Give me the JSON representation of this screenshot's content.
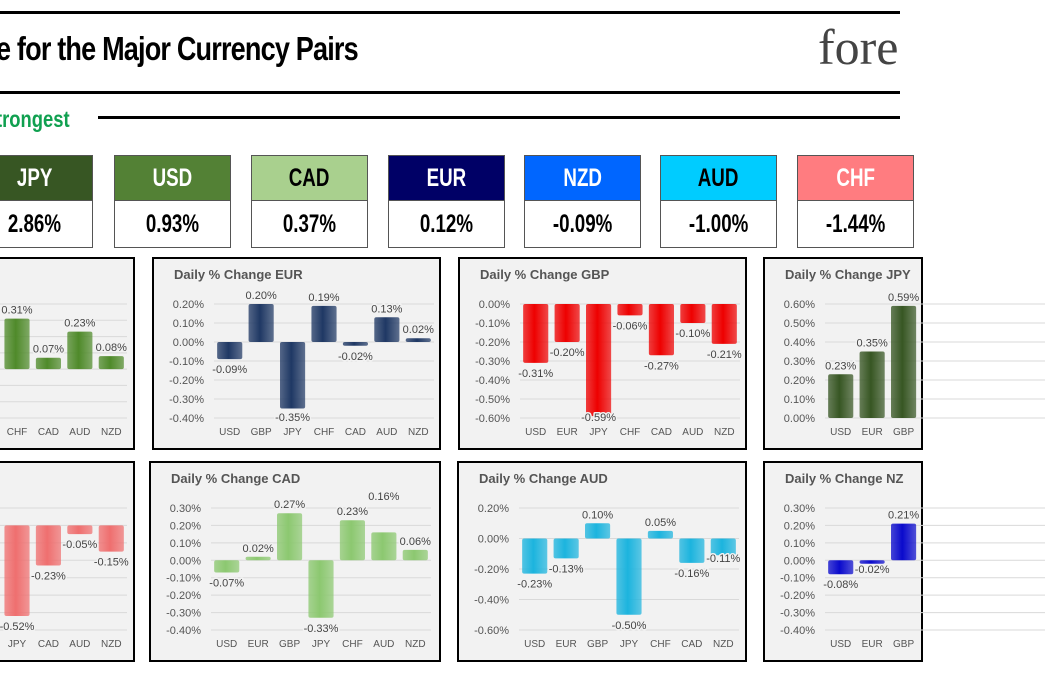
{
  "header": {
    "title": "e for the Major Currency Pairs",
    "logo": "fore"
  },
  "ranking": {
    "label": "trongest",
    "boxes": [
      {
        "code": "JPY",
        "value": "2.86%",
        "bg": "#375623",
        "fg": "#ffffff"
      },
      {
        "code": "USD",
        "value": "0.93%",
        "bg": "#538135",
        "fg": "#ffffff"
      },
      {
        "code": "CAD",
        "value": "0.37%",
        "bg": "#a9d08e",
        "fg": "#000000"
      },
      {
        "code": "EUR",
        "value": "0.12%",
        "bg": "#000066",
        "fg": "#ffffff"
      },
      {
        "code": "NZD",
        "value": "-0.09%",
        "bg": "#0066ff",
        "fg": "#ffffff"
      },
      {
        "code": "AUD",
        "value": "-1.00%",
        "bg": "#00ccff",
        "fg": "#000000"
      },
      {
        "code": "CHF",
        "value": "-1.44%",
        "bg": "#ff7c80",
        "fg": "#ffffff"
      }
    ]
  },
  "chart_data": [
    {
      "type": "bar",
      "title": "",
      "color": "#4f8a2a",
      "categories": [
        "CHF",
        "CAD",
        "AUD",
        "NZD"
      ],
      "values": [
        0.31,
        0.07,
        0.23,
        0.08
      ],
      "labels": [
        "0.31%",
        "0.07%",
        "0.23%",
        "0.08%"
      ],
      "ylim": [
        -0.3,
        0.4
      ],
      "ticks": []
    },
    {
      "type": "bar",
      "title": "Daily % Change EUR",
      "color": "#1f3864",
      "categories": [
        "USD",
        "GBP",
        "JPY",
        "CHF",
        "CAD",
        "AUD",
        "NZD"
      ],
      "values": [
        -0.09,
        0.2,
        -0.35,
        0.19,
        -0.02,
        0.13,
        0.02
      ],
      "labels": [
        "-0.09%",
        "0.20%",
        "-0.35%",
        "0.19%",
        "-0.02%",
        "0.13%",
        "0.02%"
      ],
      "ylim": [
        -0.4,
        0.2
      ],
      "ticks": [
        "0.20%",
        "0.10%",
        "0.00%",
        "-0.10%",
        "-0.20%",
        "-0.30%",
        "-0.40%"
      ]
    },
    {
      "type": "bar",
      "title": "Daily % Change GBP",
      "color": "#ee0000",
      "categories": [
        "USD",
        "EUR",
        "JPY",
        "CHF",
        "CAD",
        "AUD",
        "NZD"
      ],
      "values": [
        -0.31,
        -0.2,
        -0.59,
        -0.06,
        -0.27,
        -0.1,
        -0.21
      ],
      "labels": [
        "-0.31%",
        "-0.20%",
        "-0.59%",
        "-0.06%",
        "-0.27%",
        "-0.10%",
        "-0.21%"
      ],
      "ylim": [
        -0.6,
        0
      ],
      "ticks": [
        "0.00%",
        "-0.10%",
        "-0.20%",
        "-0.30%",
        "-0.40%",
        "-0.50%",
        "-0.60%"
      ]
    },
    {
      "type": "bar",
      "title": "Daily % Change JPY",
      "color": "#375623",
      "categories": [
        "USD",
        "EUR",
        "GBP"
      ],
      "values": [
        0.23,
        0.35,
        0.59
      ],
      "labels": [
        "0.23%",
        "0.35%",
        "0.59%"
      ],
      "ylim": [
        0,
        0.6
      ],
      "ticks": [
        "0.60%",
        "0.50%",
        "0.40%",
        "0.30%",
        "0.20%",
        "0.10%",
        "0.00%"
      ]
    },
    {
      "type": "bar",
      "title": "",
      "color": "#ef6f6f",
      "categories": [
        "JPY",
        "CAD",
        "AUD",
        "NZD"
      ],
      "values": [
        -0.52,
        -0.23,
        -0.05,
        -0.15
      ],
      "labels": [
        "-0.52%",
        "-0.23%",
        "-0.05%",
        "-0.15%"
      ],
      "ylim": [
        -0.6,
        0.1
      ],
      "ticks": []
    },
    {
      "type": "bar",
      "title": "Daily % Change CAD",
      "color": "#8cc870",
      "categories": [
        "USD",
        "EUR",
        "GBP",
        "JPY",
        "CHF",
        "AUD",
        "NZD"
      ],
      "values": [
        -0.07,
        0.02,
        0.27,
        -0.33,
        0.23,
        0.16,
        0.06
      ],
      "labels": [
        "-0.07%",
        "0.02%",
        "0.27%",
        "-0.33%",
        "0.23%",
        "0.16%",
        "0.06%"
      ],
      "ylim": [
        -0.4,
        0.3
      ],
      "ticks": [
        "0.30%",
        "0.20%",
        "0.10%",
        "0.00%",
        "-0.10%",
        "-0.20%",
        "-0.30%",
        "-0.40%"
      ]
    },
    {
      "type": "bar",
      "title": "Daily % Change AUD",
      "color": "#1cb4de",
      "categories": [
        "USD",
        "EUR",
        "GBP",
        "JPY",
        "CHF",
        "CAD",
        "NZD"
      ],
      "values": [
        -0.23,
        -0.13,
        0.1,
        -0.5,
        0.05,
        -0.16,
        -0.11
      ],
      "labels": [
        "-0.23%",
        "-0.13%",
        "0.10%",
        "-0.50%",
        "0.05%",
        "-0.16%",
        "-0.11%"
      ],
      "ylim": [
        -0.6,
        0.2
      ],
      "ticks": [
        "0.20%",
        "0.00%",
        "-0.20%",
        "-0.40%",
        "-0.60%"
      ]
    },
    {
      "type": "bar",
      "title": "Daily % Change NZ",
      "color": "#0a0acc",
      "categories": [
        "USD",
        "EUR",
        "GBP"
      ],
      "values": [
        -0.08,
        -0.02,
        0.21
      ],
      "labels": [
        "-0.08%",
        "-0.02%",
        "0.21%"
      ],
      "ylim": [
        -0.4,
        0.3
      ],
      "ticks": [
        "0.30%",
        "0.20%",
        "0.10%",
        "0.00%",
        "-0.10%",
        "-0.20%",
        "-0.30%",
        "-0.40%"
      ]
    }
  ]
}
